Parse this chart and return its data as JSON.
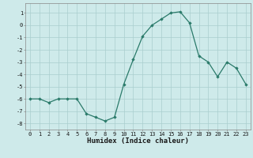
{
  "x": [
    0,
    1,
    2,
    3,
    4,
    5,
    6,
    7,
    8,
    9,
    10,
    11,
    12,
    13,
    14,
    15,
    16,
    17,
    18,
    19,
    20,
    21,
    22,
    23
  ],
  "y": [
    -6,
    -6,
    -6.3,
    -6,
    -6,
    -6,
    -7.2,
    -7.5,
    -7.8,
    -7.5,
    -4.8,
    -2.8,
    -0.9,
    0.0,
    0.5,
    1.0,
    1.1,
    0.2,
    -2.5,
    -3.0,
    -4.2,
    -3.0,
    -3.5,
    -4.8
  ],
  "line_color": "#2a7a6a",
  "marker": "D",
  "marker_size": 1.8,
  "bg_color": "#ceeaea",
  "grid_color": "#aacece",
  "xlabel": "Humidex (Indice chaleur)",
  "ylim": [
    -8.5,
    1.8
  ],
  "xlim": [
    -0.5,
    23.5
  ],
  "yticks": [
    1,
    0,
    -1,
    -2,
    -3,
    -4,
    -5,
    -6,
    -7,
    -8
  ],
  "xticks": [
    0,
    1,
    2,
    3,
    4,
    5,
    6,
    7,
    8,
    9,
    10,
    11,
    12,
    13,
    14,
    15,
    16,
    17,
    18,
    19,
    20,
    21,
    22,
    23
  ],
  "tick_fontsize": 5.0,
  "xlabel_fontsize": 6.5,
  "label_color": "#1a1a1a",
  "line_width": 0.9
}
